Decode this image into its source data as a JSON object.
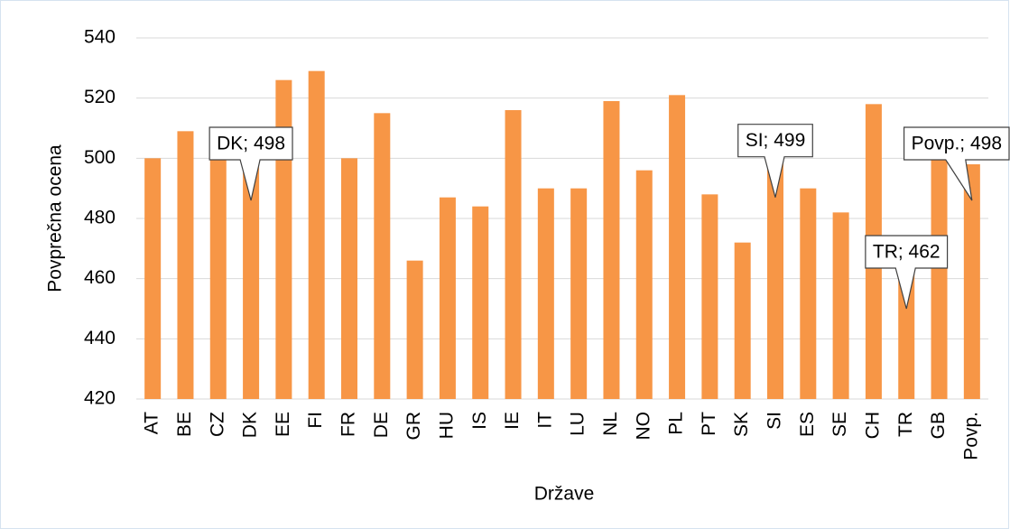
{
  "chart_data": {
    "type": "bar",
    "y_axis_label": "Povprečna ocena",
    "x_axis_label": "Države",
    "categories": [
      "AT",
      "BE",
      "CZ",
      "DK",
      "EE",
      "FI",
      "FR",
      "DE",
      "GR",
      "HU",
      "IS",
      "IE",
      "IT",
      "LU",
      "NL",
      "NO",
      "PL",
      "PT",
      "SK",
      "SI",
      "ES",
      "SE",
      "CH",
      "TR",
      "GB",
      "Povp."
    ],
    "values": [
      500,
      509,
      500,
      498,
      526,
      529,
      500,
      515,
      466,
      487,
      484,
      516,
      490,
      490,
      519,
      496,
      521,
      488,
      472,
      499,
      490,
      482,
      518,
      462,
      501,
      498
    ],
    "value_labels": [
      null,
      null,
      null,
      "DK; 498",
      null,
      null,
      null,
      null,
      null,
      null,
      null,
      null,
      null,
      null,
      null,
      null,
      null,
      null,
      null,
      "SI; 499",
      null,
      null,
      null,
      "TR; 462",
      null,
      "Povp.; 498"
    ],
    "color": "#f79646",
    "ylim": [
      420,
      540
    ],
    "yticks": [
      420,
      440,
      460,
      480,
      500,
      520,
      540
    ],
    "grid": true
  }
}
